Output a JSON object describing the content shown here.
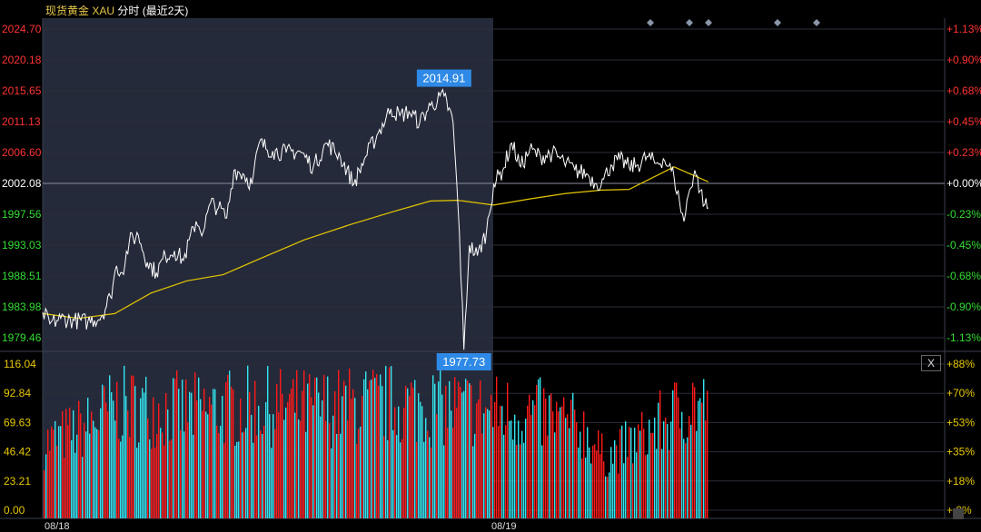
{
  "header": {
    "name": "现货黄金",
    "symbol": "XAU",
    "range_label": "分时 (最近2天)"
  },
  "close_label": "X",
  "colors": {
    "background": "#000000",
    "history_shade": "#252a3a",
    "price_line": "#ffffff",
    "avg_line": "#e6c700",
    "up_axis": "#ff3333",
    "down_axis": "#33dd33",
    "volume_red": "#ff1a1a",
    "volume_cyan": "#33e5f0",
    "volume_axis": "#e6c700",
    "callout_bg": "#2e8ae6",
    "marker": "#8a95a8"
  },
  "chart_data": [
    {
      "type": "line",
      "title": "",
      "x_tick_labels": [
        "08/18",
        "08/19"
      ],
      "price_axis": {
        "ticks": [
          "2024.70",
          "2020.18",
          "2015.65",
          "2011.13",
          "2006.60",
          "2002.08",
          "1997.56",
          "1993.03",
          "1988.51",
          "1983.98",
          "1979.46"
        ],
        "tick_colors": [
          "up",
          "up",
          "up",
          "up",
          "up",
          "flat",
          "down",
          "down",
          "down",
          "down",
          "down"
        ],
        "ylim": [
          1979.46,
          2024.7
        ],
        "reference_price": 2002.08
      },
      "percent_axis": {
        "ticks": [
          "+1.13%",
          "+0.90%",
          "+0.68%",
          "+0.45%",
          "+0.23%",
          "+0.00%",
          "-0.23%",
          "-0.45%",
          "-0.68%",
          "-0.90%",
          "-1.13%"
        ]
      },
      "annotations": [
        {
          "label": "2014.91",
          "x": 0.445,
          "y": 2014.91,
          "kind": "high"
        },
        {
          "label": "1977.73",
          "x": 0.467,
          "y": 1977.73,
          "kind": "low"
        }
      ],
      "series": [
        {
          "name": "price",
          "points": [
            [
              0.0,
              1983.2
            ],
            [
              0.008,
              1981.5
            ],
            [
              0.02,
              1982.3
            ],
            [
              0.035,
              1982.0
            ],
            [
              0.05,
              1981.8
            ],
            [
              0.065,
              1982.6
            ],
            [
              0.075,
              1985.5
            ],
            [
              0.082,
              1990.0
            ],
            [
              0.088,
              1989.0
            ],
            [
              0.096,
              1993.5
            ],
            [
              0.106,
              1994.5
            ],
            [
              0.116,
              1990.5
            ],
            [
              0.126,
              1989.0
            ],
            [
              0.136,
              1991.5
            ],
            [
              0.146,
              1992.2
            ],
            [
              0.156,
              1990.8
            ],
            [
              0.17,
              1996.5
            ],
            [
              0.178,
              1995.0
            ],
            [
              0.186,
              1999.2
            ],
            [
              0.195,
              1998.5
            ],
            [
              0.204,
              1997.0
            ],
            [
              0.212,
              2004.0
            ],
            [
              0.222,
              2003.5
            ],
            [
              0.232,
              2002.0
            ],
            [
              0.24,
              2008.0
            ],
            [
              0.255,
              2006.8
            ],
            [
              0.27,
              2006.6
            ],
            [
              0.285,
              2006.8
            ],
            [
              0.3,
              2004.5
            ],
            [
              0.315,
              2008.0
            ],
            [
              0.33,
              2006.0
            ],
            [
              0.345,
              2002.0
            ],
            [
              0.358,
              2006.0
            ],
            [
              0.372,
              2009.5
            ],
            [
              0.386,
              2013.0
            ],
            [
              0.396,
              2012.0
            ],
            [
              0.406,
              2012.6
            ],
            [
              0.418,
              2011.0
            ],
            [
              0.43,
              2013.5
            ],
            [
              0.445,
              2014.9
            ],
            [
              0.455,
              2011.0
            ],
            [
              0.462,
              1994.8
            ],
            [
              0.467,
              1977.7
            ],
            [
              0.473,
              1993.0
            ],
            [
              0.482,
              1991.5
            ],
            [
              0.492,
              1995.0
            ],
            [
              0.5,
              2002.0
            ],
            [
              0.51,
              2004.0
            ],
            [
              0.52,
              2008.0
            ],
            [
              0.53,
              2004.5
            ],
            [
              0.54,
              2007.0
            ],
            [
              0.552,
              2006.0
            ],
            [
              0.565,
              2006.5
            ],
            [
              0.578,
              2005.2
            ],
            [
              0.59,
              2004.0
            ],
            [
              0.603,
              2003.5
            ],
            [
              0.614,
              2002.0
            ],
            [
              0.622,
              2002.7
            ],
            [
              0.63,
              2004.8
            ],
            [
              0.64,
              2005.6
            ],
            [
              0.65,
              2004.5
            ],
            [
              0.66,
              2004.8
            ],
            [
              0.67,
              2006.0
            ],
            [
              0.68,
              2005.0
            ],
            [
              0.688,
              2005.7
            ],
            [
              0.694,
              2004.6
            ],
            [
              0.7,
              2003.0
            ],
            [
              0.706,
              1999.4
            ],
            [
              0.711,
              1996.5
            ],
            [
              0.716,
              2000.5
            ],
            [
              0.723,
              2004.0
            ],
            [
              0.729,
              2001.0
            ],
            [
              0.734,
              1999.0
            ],
            [
              0.738,
              1998.5
            ]
          ]
        },
        {
          "name": "average",
          "points": [
            [
              0.0,
              1983.0
            ],
            [
              0.04,
              1982.3
            ],
            [
              0.08,
              1983.0
            ],
            [
              0.12,
              1986.0
            ],
            [
              0.16,
              1987.8
            ],
            [
              0.2,
              1988.7
            ],
            [
              0.24,
              1991.0
            ],
            [
              0.29,
              1993.8
            ],
            [
              0.34,
              1996.0
            ],
            [
              0.39,
              1998.0
            ],
            [
              0.43,
              1999.5
            ],
            [
              0.46,
              1999.6
            ],
            [
              0.5,
              1998.9
            ],
            [
              0.54,
              1999.8
            ],
            [
              0.58,
              2000.6
            ],
            [
              0.62,
              2001.1
            ],
            [
              0.65,
              2001.2
            ],
            [
              0.7,
              2004.5
            ],
            [
              0.738,
              2002.3
            ]
          ]
        }
      ]
    },
    {
      "type": "bar",
      "title": "",
      "value_axis": {
        "ticks": [
          "116.04",
          "92.84",
          "69.63",
          "46.42",
          "23.21",
          "0.00"
        ],
        "ylim": [
          0,
          116.04
        ]
      },
      "percent_axis": {
        "ticks": [
          "+88%",
          "+70%",
          "+53%",
          "+35%",
          "+18%",
          "+ 0%"
        ]
      },
      "series": [
        {
          "name": "volume",
          "profile": [
            [
              0.0,
              70
            ],
            [
              0.05,
              90
            ],
            [
              0.08,
              110
            ],
            [
              0.17,
              105
            ],
            [
              0.23,
              110
            ],
            [
              0.3,
              108
            ],
            [
              0.38,
              112
            ],
            [
              0.44,
              110
            ],
            [
              0.5,
              105
            ],
            [
              0.56,
              100
            ],
            [
              0.6,
              85
            ],
            [
              0.622,
              55
            ],
            [
              0.64,
              65
            ],
            [
              0.66,
              75
            ],
            [
              0.69,
              95
            ],
            [
              0.72,
              115
            ],
            [
              0.738,
              105
            ]
          ]
        }
      ]
    }
  ]
}
